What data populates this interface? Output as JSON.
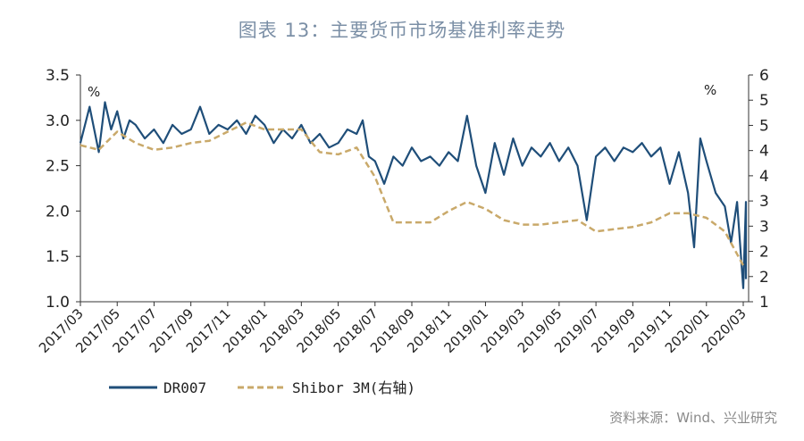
{
  "title": "图表 13：主要货币市场基准利率走势",
  "source": "资料来源：Wind、兴业研究",
  "colors": {
    "dr007": "#1f4e79",
    "shibor": "#c9a96a",
    "axis": "#333333"
  },
  "chart_data": {
    "type": "line",
    "x_tick_labels": [
      "2017/03",
      "2017/05",
      "2017/07",
      "2017/09",
      "2017/11",
      "2018/01",
      "2018/03",
      "2018/05",
      "2018/07",
      "2018/09",
      "2018/11",
      "2019/01",
      "2019/03",
      "2019/05",
      "2019/07",
      "2019/09",
      "2019/11",
      "2020/01",
      "2020/03"
    ],
    "x_range": [
      "2017/03",
      "2020/03"
    ],
    "y_left": {
      "unit_label": "%",
      "min": 1.0,
      "max": 3.5,
      "ticks": [
        "1.0",
        "1.5",
        "2.0",
        "2.5",
        "3.0",
        "3.5"
      ]
    },
    "y_right": {
      "unit_label": "%",
      "min": 1,
      "max": 6,
      "ticks": [
        "1",
        "2",
        "2",
        "3",
        "3",
        "4",
        "4",
        "5",
        "5",
        "6"
      ]
    },
    "legend": {
      "position": "bottom-left"
    },
    "grid": false,
    "series": [
      {
        "name": "DR007",
        "axis": "left",
        "style": "solid",
        "points": [
          [
            "2017/03",
            2.75
          ],
          [
            "2017/03",
            3.15
          ],
          [
            "2017/04",
            2.65
          ],
          [
            "2017/04",
            3.2
          ],
          [
            "2017/04",
            2.9
          ],
          [
            "2017/05",
            3.1
          ],
          [
            "2017/05",
            2.8
          ],
          [
            "2017/05",
            3.0
          ],
          [
            "2017/06",
            2.95
          ],
          [
            "2017/06",
            2.8
          ],
          [
            "2017/07",
            2.9
          ],
          [
            "2017/07",
            2.75
          ],
          [
            "2017/08",
            2.95
          ],
          [
            "2017/08",
            2.85
          ],
          [
            "2017/09",
            2.9
          ],
          [
            "2017/09",
            3.15
          ],
          [
            "2017/10",
            2.85
          ],
          [
            "2017/10",
            2.95
          ],
          [
            "2017/11",
            2.9
          ],
          [
            "2017/11",
            3.0
          ],
          [
            "2017/12",
            2.85
          ],
          [
            "2017/12",
            3.05
          ],
          [
            "2018/01",
            2.95
          ],
          [
            "2018/01",
            2.75
          ],
          [
            "2018/02",
            2.9
          ],
          [
            "2018/02",
            2.8
          ],
          [
            "2018/03",
            2.95
          ],
          [
            "2018/03",
            2.75
          ],
          [
            "2018/04",
            2.85
          ],
          [
            "2018/04",
            2.7
          ],
          [
            "2018/05",
            2.75
          ],
          [
            "2018/05",
            2.9
          ],
          [
            "2018/06",
            2.85
          ],
          [
            "2018/06",
            3.0
          ],
          [
            "2018/06",
            2.6
          ],
          [
            "2018/07",
            2.55
          ],
          [
            "2018/07",
            2.3
          ],
          [
            "2018/08",
            2.6
          ],
          [
            "2018/08",
            2.5
          ],
          [
            "2018/09",
            2.7
          ],
          [
            "2018/09",
            2.55
          ],
          [
            "2018/10",
            2.6
          ],
          [
            "2018/10",
            2.5
          ],
          [
            "2018/11",
            2.65
          ],
          [
            "2018/11",
            2.55
          ],
          [
            "2018/12",
            3.05
          ],
          [
            "2018/12",
            2.5
          ],
          [
            "2019/01",
            2.2
          ],
          [
            "2019/01",
            2.75
          ],
          [
            "2019/02",
            2.4
          ],
          [
            "2019/02",
            2.8
          ],
          [
            "2019/03",
            2.5
          ],
          [
            "2019/03",
            2.7
          ],
          [
            "2019/04",
            2.6
          ],
          [
            "2019/04",
            2.75
          ],
          [
            "2019/05",
            2.55
          ],
          [
            "2019/05",
            2.7
          ],
          [
            "2019/06",
            2.5
          ],
          [
            "2019/06",
            1.9
          ],
          [
            "2019/07",
            2.6
          ],
          [
            "2019/07",
            2.7
          ],
          [
            "2019/08",
            2.55
          ],
          [
            "2019/08",
            2.7
          ],
          [
            "2019/09",
            2.65
          ],
          [
            "2019/09",
            2.75
          ],
          [
            "2019/10",
            2.6
          ],
          [
            "2019/10",
            2.7
          ],
          [
            "2019/11",
            2.3
          ],
          [
            "2019/11",
            2.65
          ],
          [
            "2019/12",
            2.2
          ],
          [
            "2019/12",
            1.6
          ],
          [
            "2019/12",
            2.8
          ],
          [
            "2020/01",
            2.55
          ],
          [
            "2020/01",
            2.2
          ],
          [
            "2020/02",
            2.05
          ],
          [
            "2020/02",
            1.65
          ],
          [
            "2020/02",
            2.1
          ],
          [
            "2020/03",
            1.15
          ],
          [
            "2020/03",
            2.1
          ],
          [
            "2020/03",
            1.4
          ],
          [
            "2020/03",
            1.75
          ],
          [
            "2020/03",
            1.25
          ]
        ]
      },
      {
        "name": "Shibor 3M(右轴)",
        "axis": "right",
        "style": "dashed",
        "points": [
          [
            "2017/03",
            4.45
          ],
          [
            "2017/04",
            4.35
          ],
          [
            "2017/05",
            4.75
          ],
          [
            "2017/06",
            4.5
          ],
          [
            "2017/07",
            4.35
          ],
          [
            "2017/08",
            4.4
          ],
          [
            "2017/09",
            4.5
          ],
          [
            "2017/10",
            4.55
          ],
          [
            "2017/11",
            4.75
          ],
          [
            "2017/12",
            4.95
          ],
          [
            "2018/01",
            4.8
          ],
          [
            "2018/02",
            4.8
          ],
          [
            "2018/03",
            4.8
          ],
          [
            "2018/04",
            4.3
          ],
          [
            "2018/05",
            4.25
          ],
          [
            "2018/06",
            4.4
          ],
          [
            "2018/07",
            3.75
          ],
          [
            "2018/08",
            2.75
          ],
          [
            "2018/09",
            2.75
          ],
          [
            "2018/10",
            2.75
          ],
          [
            "2018/11",
            3.0
          ],
          [
            "2018/12",
            3.2
          ],
          [
            "2019/01",
            3.05
          ],
          [
            "2019/02",
            2.8
          ],
          [
            "2019/03",
            2.7
          ],
          [
            "2019/04",
            2.7
          ],
          [
            "2019/05",
            2.75
          ],
          [
            "2019/06",
            2.8
          ],
          [
            "2019/07",
            2.55
          ],
          [
            "2019/08",
            2.6
          ],
          [
            "2019/09",
            2.65
          ],
          [
            "2019/10",
            2.75
          ],
          [
            "2019/11",
            2.95
          ],
          [
            "2019/12",
            2.95
          ],
          [
            "2020/01",
            2.85
          ],
          [
            "2020/02",
            2.55
          ],
          [
            "2020/03",
            1.8
          ]
        ]
      }
    ]
  }
}
